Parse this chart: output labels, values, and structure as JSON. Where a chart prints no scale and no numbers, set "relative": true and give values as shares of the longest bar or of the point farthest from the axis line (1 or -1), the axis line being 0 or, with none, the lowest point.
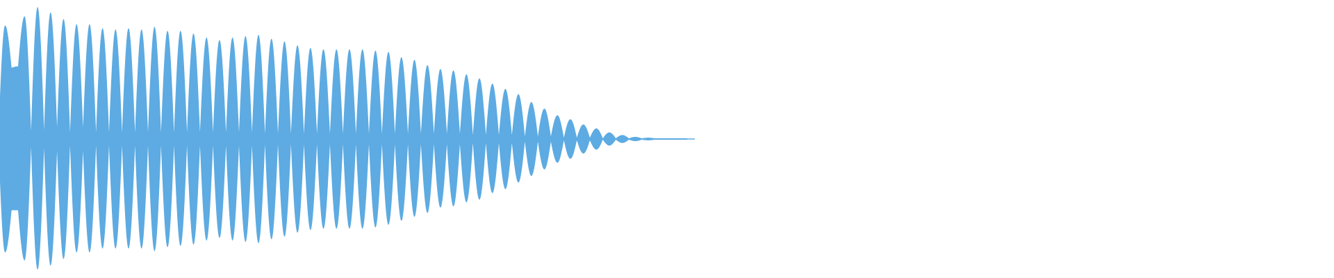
{
  "chart_data": {
    "type": "area",
    "relative": true,
    "categories": [
      null,
      null,
      null,
      null,
      null,
      null,
      null,
      null,
      null,
      null,
      null,
      null,
      null,
      null,
      null,
      null,
      null,
      null,
      null,
      null,
      null,
      null,
      null,
      null,
      null,
      null,
      null,
      null,
      null,
      null,
      null,
      null,
      null,
      null,
      null,
      null,
      null,
      null,
      null,
      null,
      null,
      null,
      null,
      null,
      null,
      null,
      null,
      null,
      null,
      null,
      null,
      null,
      null,
      null,
      null,
      null,
      null,
      null,
      null,
      null,
      null,
      null,
      null,
      null,
      null,
      null,
      null,
      null,
      null,
      null,
      null,
      null,
      null,
      null,
      null,
      null,
      null,
      null,
      null,
      null,
      null,
      null,
      null,
      null,
      null,
      null,
      null,
      null,
      null,
      null,
      null,
      null,
      null,
      null,
      null,
      null,
      null,
      null,
      null,
      null,
      null,
      null,
      null,
      null,
      null,
      null,
      null
    ],
    "series": [
      {
        "color": "#5dabe2",
        "values": [
          0.05,
          0.86,
          0.54,
          0.55,
          0.93,
          0.06,
          1.0,
          0.07,
          0.96,
          0.09,
          0.91,
          0.05,
          0.87,
          0.09,
          0.87,
          0.05,
          0.84,
          0.05,
          0.83,
          0.05,
          0.84,
          0.05,
          0.83,
          0.05,
          0.85,
          0.05,
          0.82,
          0.05,
          0.82,
          0.05,
          0.8,
          0.05,
          0.77,
          0.05,
          0.75,
          0.05,
          0.77,
          0.05,
          0.78,
          0.05,
          0.79,
          0.04,
          0.76,
          0.04,
          0.74,
          0.04,
          0.71,
          0.04,
          0.69,
          0.04,
          0.68,
          0.04,
          0.68,
          0.04,
          0.68,
          0.04,
          0.68,
          0.04,
          0.67,
          0.04,
          0.66,
          0.04,
          0.62,
          0.04,
          0.6,
          0.04,
          0.56,
          0.04,
          0.53,
          0.04,
          0.52,
          0.04,
          0.49,
          0.03,
          0.46,
          0.03,
          0.42,
          0.03,
          0.38,
          0.03,
          0.34,
          0.02,
          0.28,
          0.02,
          0.23,
          0.02,
          0.18,
          0.01,
          0.15,
          0.01,
          0.11,
          0.01,
          0.08,
          0.005,
          0.05,
          0.005,
          0.03,
          0.005,
          0.016,
          0.005,
          0.01,
          0.005,
          0.005,
          0.005,
          0.005,
          0.005,
          0.005
        ]
      },
      {
        "color": "#5dabe2",
        "values": [
          -0.05,
          -0.86,
          -0.54,
          -0.54,
          -0.92,
          -0.06,
          -0.99,
          -0.07,
          -0.96,
          -0.09,
          -0.91,
          -0.05,
          -0.86,
          -0.09,
          -0.86,
          -0.05,
          -0.83,
          -0.05,
          -0.83,
          -0.05,
          -0.83,
          -0.05,
          -0.83,
          -0.05,
          -0.85,
          -0.05,
          -0.82,
          -0.05,
          -0.81,
          -0.05,
          -0.8,
          -0.05,
          -0.77,
          -0.05,
          -0.75,
          -0.05,
          -0.77,
          -0.05,
          -0.78,
          -0.05,
          -0.79,
          -0.04,
          -0.76,
          -0.04,
          -0.74,
          -0.04,
          -0.71,
          -0.04,
          -0.69,
          -0.04,
          -0.68,
          -0.04,
          -0.68,
          -0.04,
          -0.68,
          -0.04,
          -0.68,
          -0.04,
          -0.67,
          -0.04,
          -0.65,
          -0.04,
          -0.62,
          -0.04,
          -0.59,
          -0.04,
          -0.56,
          -0.04,
          -0.52,
          -0.04,
          -0.51,
          -0.04,
          -0.48,
          -0.03,
          -0.46,
          -0.03,
          -0.41,
          -0.03,
          -0.38,
          -0.03,
          -0.33,
          -0.02,
          -0.28,
          -0.02,
          -0.23,
          -0.02,
          -0.18,
          -0.01,
          -0.15,
          -0.01,
          -0.11,
          -0.01,
          -0.08,
          -0.005,
          -0.05,
          -0.005,
          -0.03,
          -0.005,
          -0.016,
          -0.005,
          -0.01,
          -0.005,
          -0.005,
          -0.005,
          -0.005,
          -0.005,
          -0.005
        ]
      }
    ],
    "ref_lines": [
      {
        "axis": "y",
        "value": 0,
        "color": "#5dabe2"
      }
    ]
  }
}
